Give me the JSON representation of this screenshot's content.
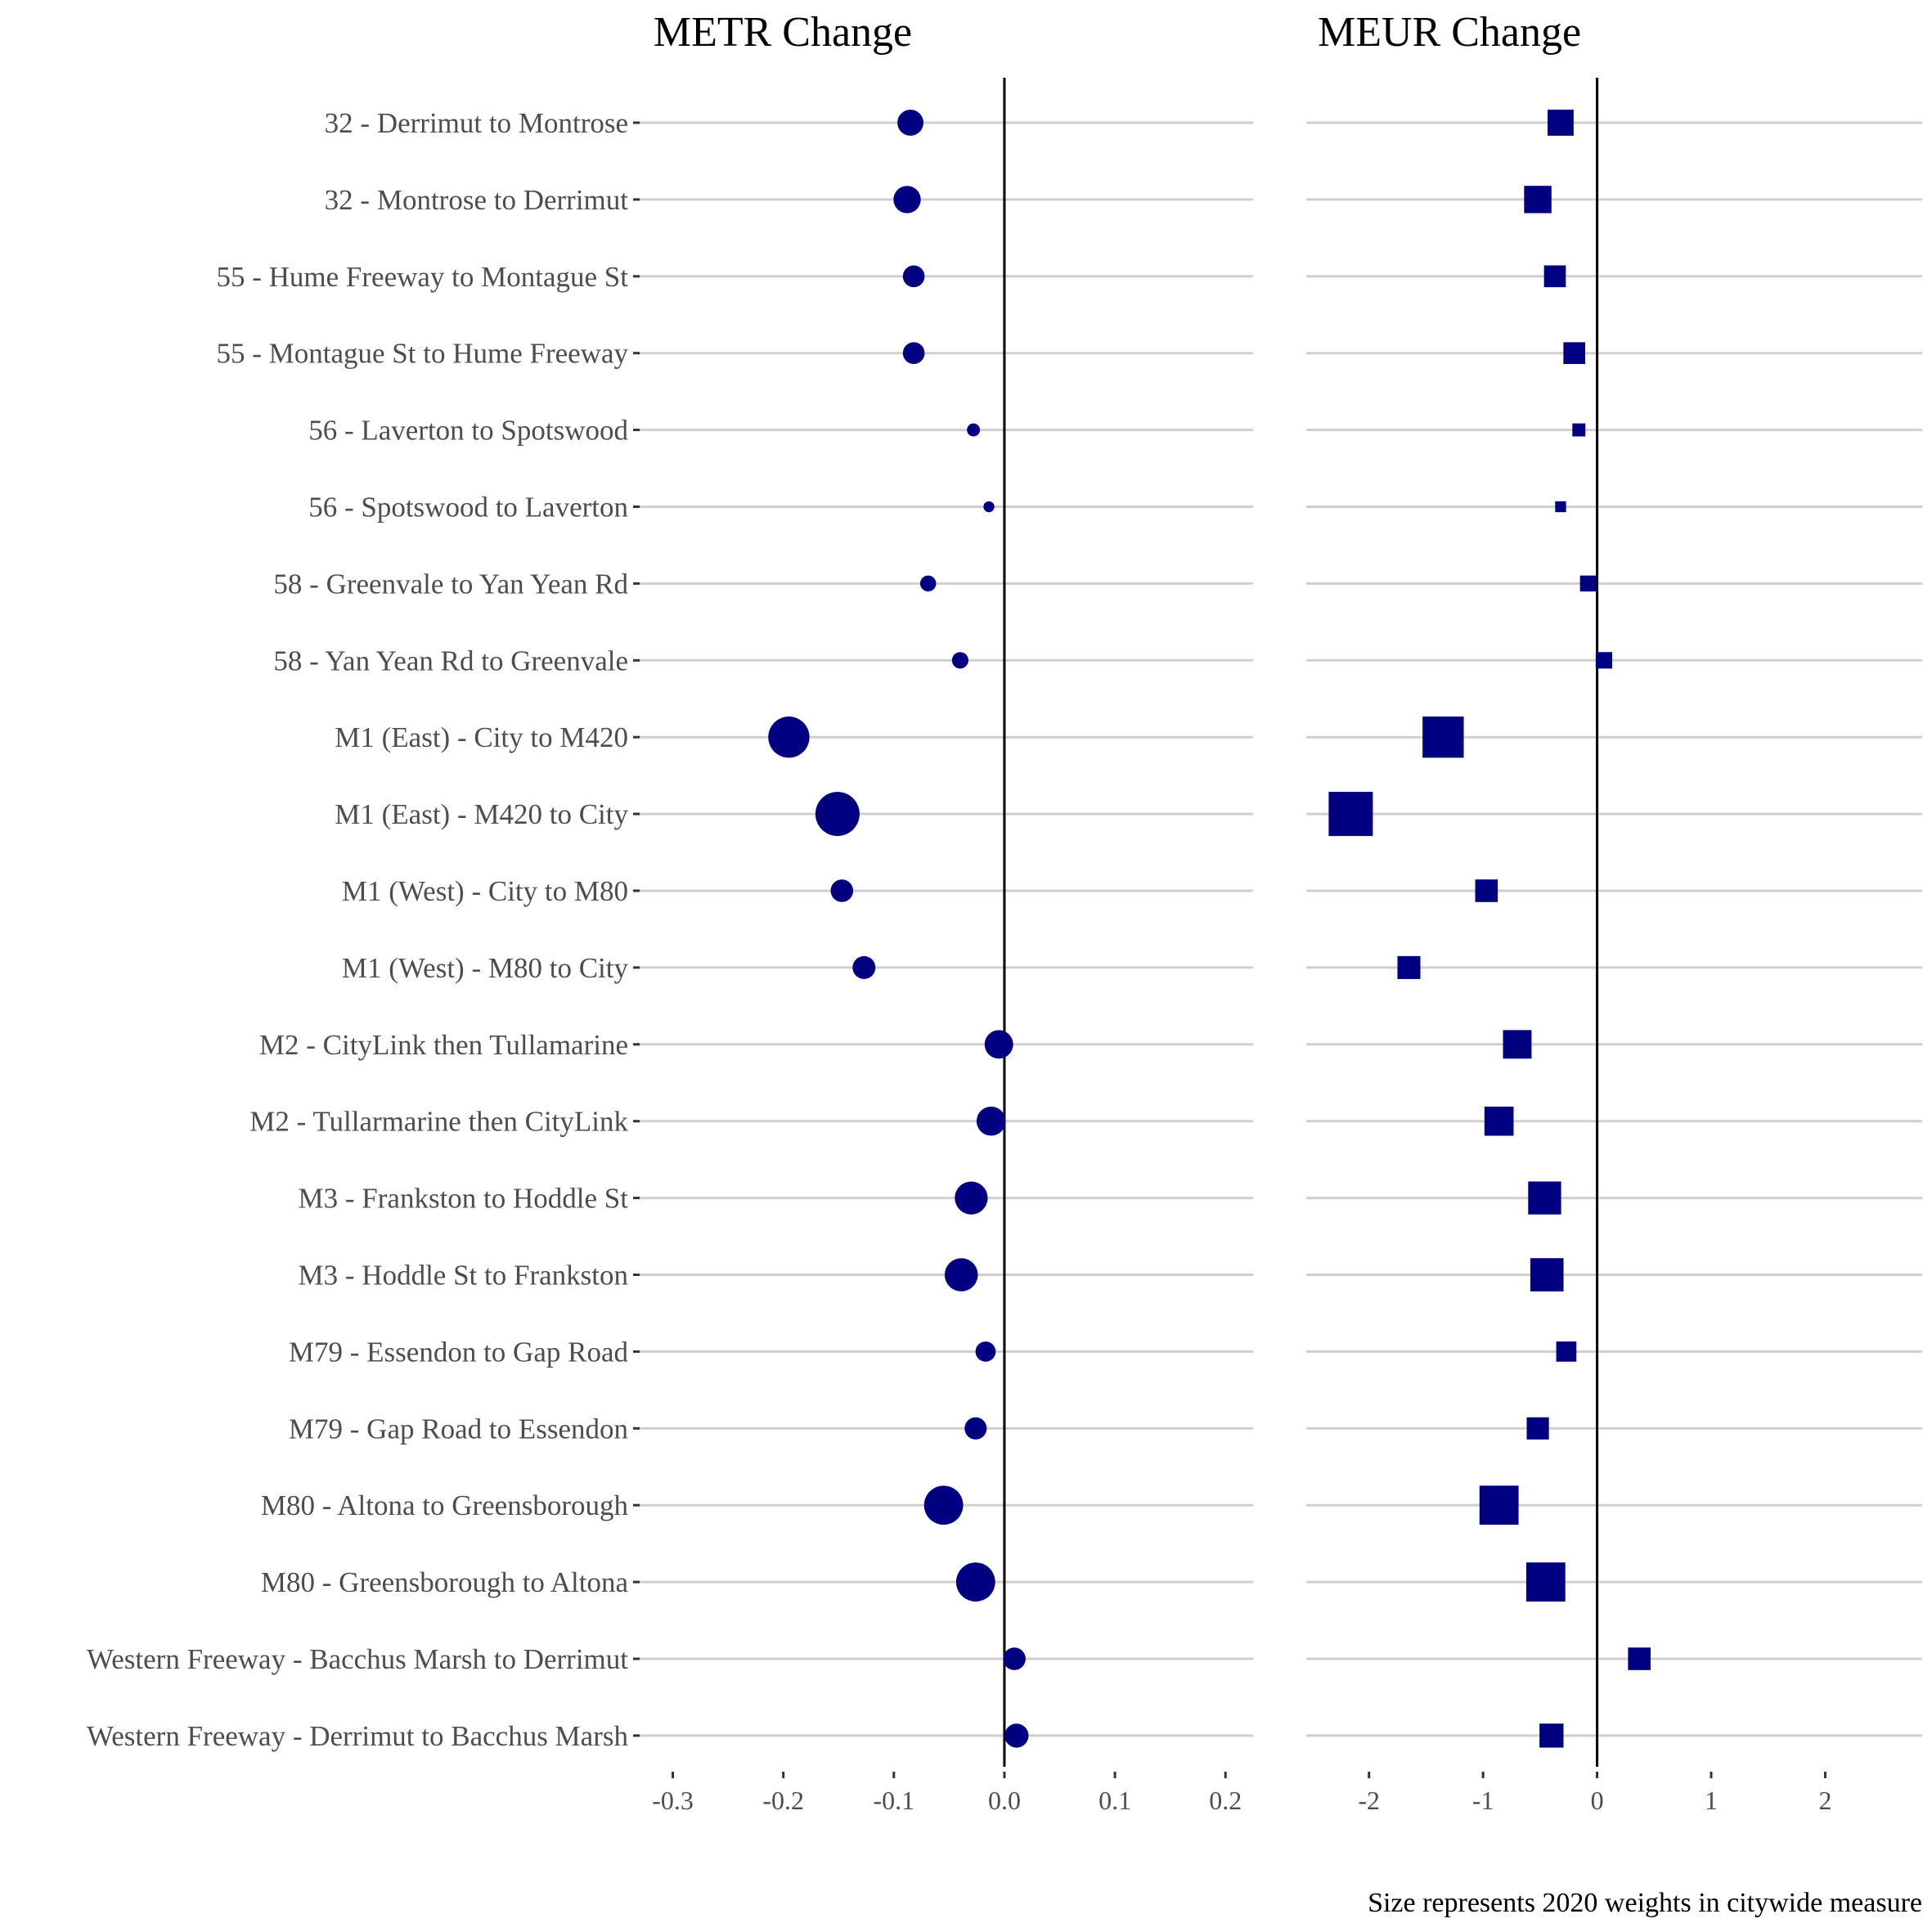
{
  "chart_data": [
    {
      "type": "scatter",
      "title": "METR Change",
      "marker": "circle",
      "color": "#000080",
      "xlim": [
        -0.33,
        0.225
      ],
      "xticks": [
        -0.3,
        -0.2,
        -0.1,
        0.0,
        0.1,
        0.2
      ],
      "xtick_labels": [
        "-0.3",
        "-0.2",
        "-0.1",
        "0.0",
        "0.1",
        "0.2"
      ],
      "zero_line": true,
      "categories": [
        "32 - Derrimut to Montrose",
        "32 - Montrose to Derrimut",
        "55 - Hume Freeway to Montague St",
        "55 - Montague St to Hume Freeway",
        "56 - Laverton to Spotswood",
        "56 - Spotswood to Laverton",
        "58 - Greenvale to Yan Yean Rd",
        "58 - Yan Yean Rd to Greenvale",
        "M1 (East) - City to M420",
        "M1 (East) - M420 to City",
        "M1 (West) - City to M80",
        "M1 (West) - M80 to City",
        "M2 - CityLink then Tullamarine",
        "M2 - Tullarmarine then CityLink",
        "M3 - Frankston to Hoddle St",
        "M3 - Hoddle St to Frankston",
        "M79 - Essendon to Gap Road",
        "M79 - Gap Road to Essendon",
        "M80 - Altona to Greensborough",
        "M80 - Greensborough to Altona",
        "Western Freeway - Bacchus Marsh to Derrimut",
        "Western Freeway - Derrimut to Bacchus Marsh"
      ],
      "values": [
        -0.085,
        -0.088,
        -0.082,
        -0.082,
        -0.028,
        -0.014,
        -0.069,
        -0.04,
        -0.195,
        -0.151,
        -0.147,
        -0.127,
        -0.005,
        -0.012,
        -0.03,
        -0.039,
        -0.017,
        -0.026,
        -0.055,
        -0.026,
        0.009,
        0.011
      ],
      "weights": [
        0.4,
        0.44,
        0.28,
        0.28,
        0.1,
        0.07,
        0.15,
        0.16,
        1.0,
        1.15,
        0.3,
        0.31,
        0.48,
        0.5,
        0.64,
        0.65,
        0.24,
        0.29,
        0.9,
        0.9,
        0.3,
        0.34
      ]
    },
    {
      "type": "scatter",
      "title": "MEUR Change",
      "marker": "square",
      "color": "#000080",
      "xlim": [
        -2.55,
        2.85
      ],
      "xticks": [
        -2,
        -1,
        0,
        1,
        2
      ],
      "xtick_labels": [
        "-2",
        "-1",
        "0",
        "1",
        "2"
      ],
      "zero_line": true,
      "categories": "same as METR Change",
      "values": [
        -0.32,
        -0.52,
        -0.37,
        -0.2,
        -0.16,
        -0.32,
        -0.08,
        0.06,
        -1.35,
        -2.16,
        -0.97,
        -1.65,
        -0.7,
        -0.86,
        -0.46,
        -0.44,
        -0.27,
        -0.52,
        -0.86,
        -0.45,
        0.37,
        -0.4
      ],
      "weights": [
        0.4,
        0.44,
        0.28,
        0.28,
        0.1,
        0.07,
        0.15,
        0.16,
        1.0,
        1.15,
        0.3,
        0.31,
        0.48,
        0.5,
        0.64,
        0.65,
        0.24,
        0.29,
        0.9,
        0.9,
        0.3,
        0.34
      ]
    }
  ],
  "caption": "Size represents 2020 weights in citywide measure"
}
